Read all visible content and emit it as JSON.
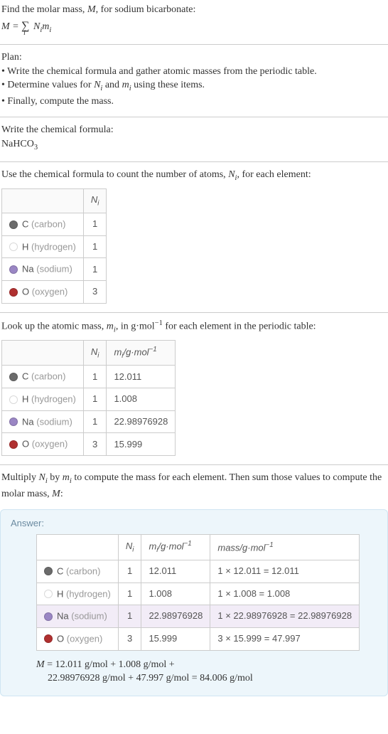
{
  "intro": {
    "line1_a": "Find the molar mass, ",
    "line1_b": "M",
    "line1_c": ", for sodium bicarbonate:",
    "eq_lhs": "M",
    "eq_eq": " = ",
    "eq_sigma": "∑",
    "eq_sub": "i",
    "eq_rhs_a": " N",
    "eq_rhs_b": "i",
    "eq_rhs_c": "m",
    "eq_rhs_d": "i"
  },
  "plan": {
    "title": "Plan:",
    "b1": "• Write the chemical formula and gather atomic masses from the periodic table.",
    "b2a": "• Determine values for ",
    "b2b": "N",
    "b2c": "i",
    "b2d": " and ",
    "b2e": "m",
    "b2f": "i",
    "b2g": " using these items.",
    "b3": "• Finally, compute the mass."
  },
  "chem": {
    "title": "Write the chemical formula:",
    "f1": "NaHCO",
    "f2": "3"
  },
  "count": {
    "title_a": "Use the chemical formula to count the number of atoms, ",
    "title_b": "N",
    "title_c": "i",
    "title_d": ", for each element:",
    "hdr_a": "N",
    "hdr_b": "i",
    "rows": [
      {
        "color": "#6b6b6b",
        "sym": "C",
        "name": " (carbon)",
        "n": "1"
      },
      {
        "color": "#ffffff",
        "sym": "H",
        "name": " (hydrogen)",
        "n": "1"
      },
      {
        "color": "#9a86c4",
        "sym": "Na",
        "name": " (sodium)",
        "n": "1"
      },
      {
        "color": "#b03030",
        "sym": "O",
        "name": " (oxygen)",
        "n": "3"
      }
    ]
  },
  "mass": {
    "title_a": "Look up the atomic mass, ",
    "title_b": "m",
    "title_c": "i",
    "title_d": ", in g·mol",
    "title_e": "−1",
    "title_f": " for each element in the periodic table:",
    "hdr1_a": "N",
    "hdr1_b": "i",
    "hdr2_a": "m",
    "hdr2_b": "i",
    "hdr2_c": "/g·mol",
    "hdr2_d": "−1",
    "rows": [
      {
        "color": "#6b6b6b",
        "sym": "C",
        "name": " (carbon)",
        "n": "1",
        "m": "12.011"
      },
      {
        "color": "#ffffff",
        "sym": "H",
        "name": " (hydrogen)",
        "n": "1",
        "m": "1.008"
      },
      {
        "color": "#9a86c4",
        "sym": "Na",
        "name": " (sodium)",
        "n": "1",
        "m": "22.98976928"
      },
      {
        "color": "#b03030",
        "sym": "O",
        "name": " (oxygen)",
        "n": "3",
        "m": "15.999"
      }
    ]
  },
  "mult": {
    "a": "Multiply ",
    "b": "N",
    "c": "i",
    "d": " by ",
    "e": "m",
    "f": "i",
    "g": " to compute the mass for each element. Then sum those values to compute the molar mass, ",
    "h": "M",
    "i": ":"
  },
  "answer": {
    "label": "Answer:",
    "hdr1_a": "N",
    "hdr1_b": "i",
    "hdr2_a": "m",
    "hdr2_b": "i",
    "hdr2_c": "/g·mol",
    "hdr2_d": "−1",
    "hdr3_a": "mass/g·mol",
    "hdr3_b": "−1",
    "rows": [
      {
        "color": "#6b6b6b",
        "sym": "C",
        "name": " (carbon)",
        "n": "1",
        "m": "12.011",
        "calc": "1 × 12.011 = 12.011",
        "hl": false
      },
      {
        "color": "#ffffff",
        "sym": "H",
        "name": " (hydrogen)",
        "n": "1",
        "m": "1.008",
        "calc": "1 × 1.008 = 1.008",
        "hl": false
      },
      {
        "color": "#9a86c4",
        "sym": "Na",
        "name": " (sodium)",
        "n": "1",
        "m": "22.98976928",
        "calc": "1 × 22.98976928 = 22.98976928",
        "hl": true
      },
      {
        "color": "#b03030",
        "sym": "O",
        "name": " (oxygen)",
        "n": "3",
        "m": "15.999",
        "calc": "3 × 15.999 = 47.997",
        "hl": false
      }
    ],
    "eq1_a": "M",
    "eq1_b": " = 12.011 g/mol + 1.008 g/mol + ",
    "eq2": "22.98976928 g/mol + 47.997 g/mol = 84.006 g/mol"
  }
}
